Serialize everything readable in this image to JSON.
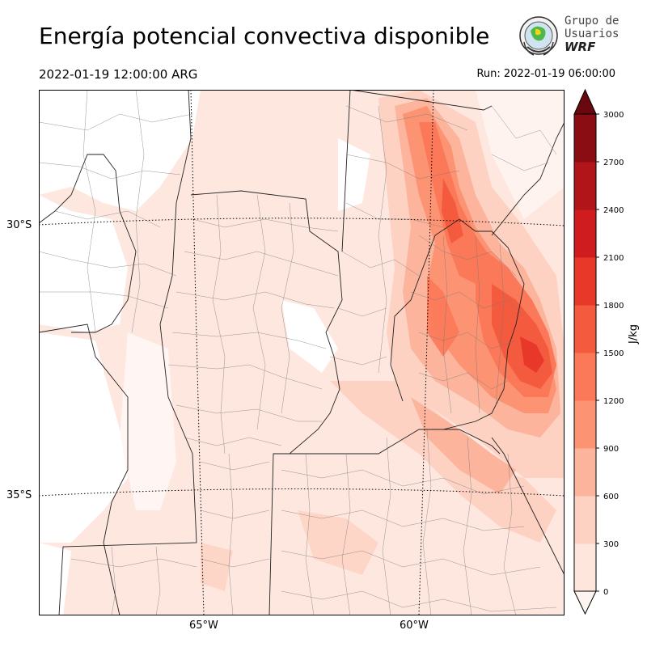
{
  "title": "Energía potencial convectiva disponible",
  "valid_time": "2022-01-19 12:00:00 ARG",
  "run_time": "Run: 2022-01-19 06:00:00",
  "logo": {
    "line1": "Grupo de",
    "line2": "Usuarios",
    "line3": "WRF"
  },
  "map": {
    "lat_labels": [
      "30°S",
      "35°S"
    ],
    "lon_labels": [
      "65°W",
      "60°W"
    ]
  },
  "colorbar": {
    "unit": "J/kg",
    "levels": [
      0,
      300,
      600,
      900,
      1200,
      1500,
      1800,
      2100,
      2400,
      2700,
      3000
    ],
    "colors": [
      "#fee6dd",
      "#fdd2c2",
      "#fcb49c",
      "#fc9474",
      "#fb7858",
      "#f45a3e",
      "#e83829",
      "#cf1d1f",
      "#b11519",
      "#8b0d14",
      "#6a0810"
    ],
    "extend": "both"
  }
}
